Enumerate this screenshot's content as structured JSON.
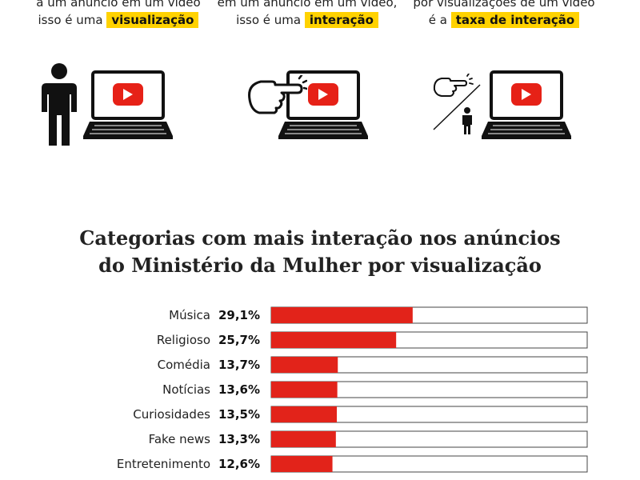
{
  "intro": {
    "col1": {
      "line1": "a um anúncio em um vídeo",
      "line2_prefix": "isso é uma",
      "highlight": "visualização"
    },
    "col2": {
      "line1": "em um anúncio em um vídeo,",
      "line2_prefix": "isso é uma",
      "highlight": "interação"
    },
    "col3": {
      "line1": "por visualizações de um vídeo",
      "line2_prefix": "é a",
      "highlight": "taxa de interação"
    }
  },
  "icons": [
    "person-icon",
    "laptop-youtube-icon",
    "pointing-hand-icon",
    "fraction-icon"
  ],
  "colors": {
    "bar": "#e2231a",
    "highlight": "#ffd200",
    "youtube_red": "#e62117"
  },
  "chart_data": {
    "type": "bar",
    "orientation": "horizontal",
    "title_line1": "Categorias com mais interação nos anúncios",
    "title_line2": "do Ministério da Mulher por visualização",
    "categories": [
      "Música",
      "Religioso",
      "Comédia",
      "Notícias",
      "Curiosidades",
      "Fake news",
      "Entretenimento"
    ],
    "values": [
      29.1,
      25.7,
      13.7,
      13.6,
      13.5,
      13.3,
      12.6
    ],
    "value_labels": [
      "29,1%",
      "25,7%",
      "13,7%",
      "13,6%",
      "13,5%",
      "13,3%",
      "12,6%"
    ],
    "xlim": [
      0,
      65
    ],
    "bar_color": "#e2231a"
  }
}
